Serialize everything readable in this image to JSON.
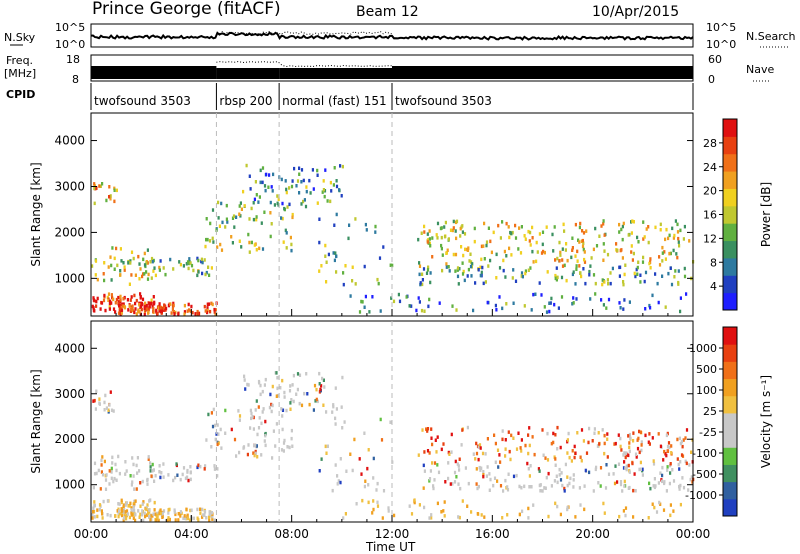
{
  "header": {
    "station": "Prince George (fitACF)",
    "beam": "Beam 12",
    "date": "10/Apr/2015"
  },
  "noise_panel": {
    "left_label": "N.Sky",
    "right_label": "N.Search",
    "left_ticks": [
      "10^5",
      "10^0"
    ],
    "right_ticks": [
      "10^5",
      "10^0"
    ]
  },
  "freq_panel": {
    "left_label_1": "Freq.",
    "left_label_2": "[MHz]",
    "left_ticks": [
      "18",
      "8"
    ],
    "right_label": "Nave",
    "right_ticks": [
      "60",
      "0"
    ]
  },
  "cpid": {
    "label": "CPID",
    "segments": [
      {
        "name": "twofsound 3503",
        "start": 0,
        "end": 5
      },
      {
        "name": "rbsp 200",
        "start": 5,
        "end": 7.5
      },
      {
        "name": "normal (fast) 151",
        "start": 7.5,
        "end": 12
      },
      {
        "name": "twofsound 3503",
        "start": 12,
        "end": 24
      }
    ]
  },
  "x_axis": {
    "label": "Time UT",
    "ticks": [
      "00:00",
      "04:00",
      "08:00",
      "12:00",
      "16:00",
      "20:00",
      "00:00"
    ]
  },
  "chart_data": [
    {
      "type": "heatmap",
      "quantity": "power",
      "ylabel": "Slant Range [km]",
      "yticks": [
        1000,
        2000,
        3000,
        4000
      ],
      "ylim": [
        180,
        4600
      ],
      "xlim_hours": [
        0,
        24
      ],
      "colorbar": {
        "label": "Power [dB]",
        "ticks": [
          "4",
          "8",
          "12",
          "16",
          "20",
          "24",
          "28"
        ],
        "colors": [
          "#1f1fff",
          "#2040c0",
          "#2e7aa0",
          "#3a9060",
          "#60b040",
          "#c0c830",
          "#f0d020",
          "#f0a020",
          "#f07018",
          "#e84010",
          "#e01010"
        ]
      }
    },
    {
      "type": "heatmap",
      "quantity": "velocity",
      "ylabel": "Slant Range [km]",
      "yticks": [
        1000,
        2000,
        3000,
        4000
      ],
      "ylim": [
        180,
        4600
      ],
      "xlim_hours": [
        0,
        24
      ],
      "colorbar": {
        "label": "Velocity [m s⁻¹]",
        "ticks": [
          "1000",
          "500",
          "100",
          "25",
          "-25",
          "-100",
          "-500",
          "-1000"
        ],
        "colors": [
          "#2040c0",
          "#3060a0",
          "#409060",
          "#60c040",
          "#c8c8c8",
          "#c8c8c8",
          "#f0c040",
          "#f0a020",
          "#f07018",
          "#e84010",
          "#e01010"
        ]
      }
    }
  ]
}
